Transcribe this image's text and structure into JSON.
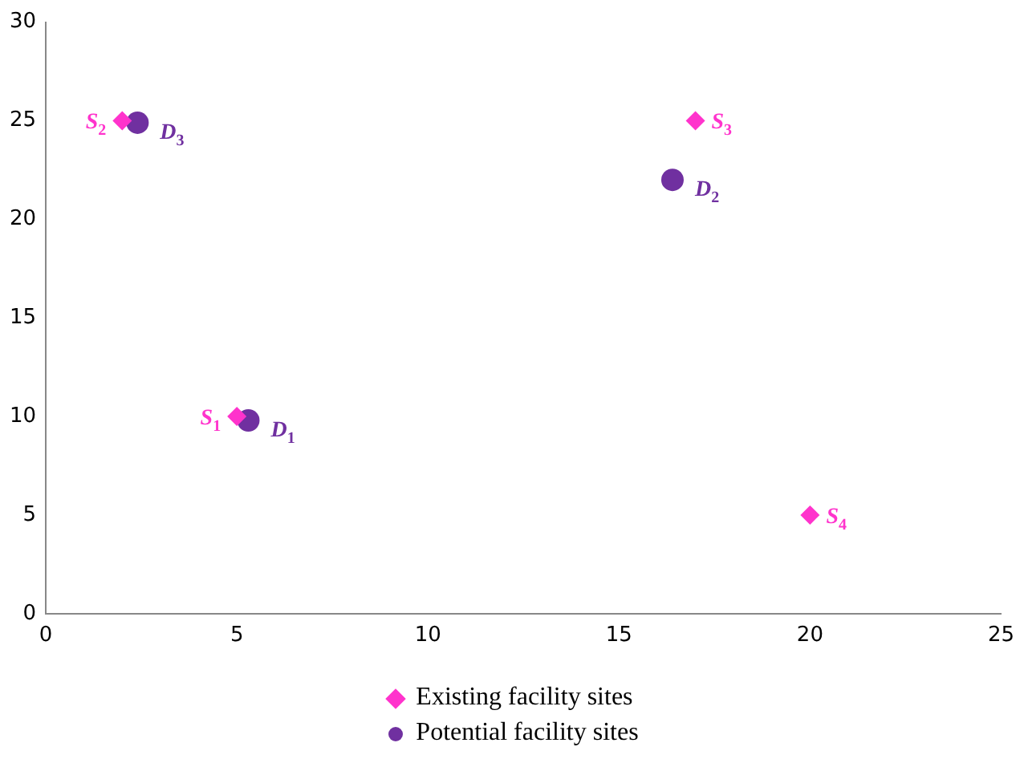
{
  "chart_data": {
    "type": "scatter",
    "xlim": [
      0,
      25
    ],
    "xticks": [
      0,
      5,
      10,
      15,
      20,
      25
    ],
    "ylim": [
      0,
      30
    ],
    "yticks": [
      0,
      5,
      10,
      15,
      20,
      25,
      30
    ],
    "grid": false,
    "legend": "bottom",
    "series": [
      {
        "name": "Existing facility sites",
        "color": "#ff33cc",
        "marker": "diamond",
        "x": [
          5,
          2,
          17,
          20
        ],
        "values": [
          10,
          25,
          25,
          5
        ]
      },
      {
        "name": "Potential facility sites",
        "color": "#7030a0",
        "marker": "circle",
        "x": [
          5.3,
          16.4,
          2.4
        ],
        "values": [
          9.8,
          22,
          24.9
        ]
      }
    ],
    "annotations": [
      {
        "text": "S$_{1}$",
        "x": 5,
        "y": 10
      },
      {
        "text": "S$_{2}$",
        "x": 2,
        "y": 25
      },
      {
        "text": "S$_{3}$",
        "x": 17,
        "y": 25
      },
      {
        "text": "S$_{4}$",
        "x": 20,
        "y": 5
      },
      {
        "text": "D$_{1}$",
        "x": 5.3,
        "y": 9.8
      },
      {
        "text": "D$_{2}$",
        "x": 16.4,
        "y": 22
      },
      {
        "text": "D$_{3}$",
        "x": 2.4,
        "y": 24.9
      }
    ]
  }
}
